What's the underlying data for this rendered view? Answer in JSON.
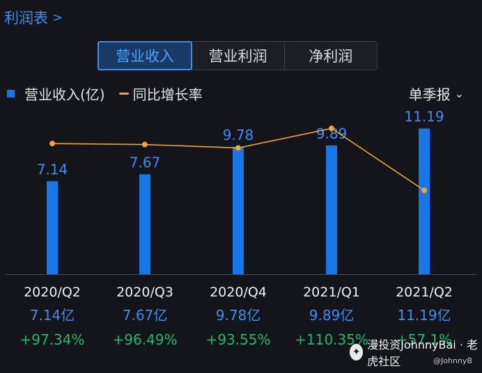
{
  "header": {
    "title": "利润表",
    "chevron": ">"
  },
  "tabs": [
    {
      "label": "营业收入",
      "active": true
    },
    {
      "label": "营业利润",
      "active": false
    },
    {
      "label": "净利润",
      "active": false
    }
  ],
  "legend": {
    "bar_label": "营业收入(亿)",
    "line_label": "同比增长率"
  },
  "period_select": {
    "label": "单季报",
    "chevron": "⌄"
  },
  "colors": {
    "bar": "#1677e8",
    "line": "#f2a33a",
    "accent": "#3e8cf0",
    "growth": "#1fb86a"
  },
  "chart_data": {
    "type": "bar",
    "categories": [
      "2020/Q2",
      "2020/Q3",
      "2020/Q4",
      "2021/Q1",
      "2021/Q2"
    ],
    "series": [
      {
        "name": "营业收入(亿)",
        "type": "bar",
        "values": [
          7.14,
          7.67,
          9.78,
          9.89,
          11.19
        ]
      },
      {
        "name": "同比增长率",
        "type": "line",
        "values": [
          97.34,
          96.49,
          93.55,
          110.35,
          57.1
        ]
      }
    ],
    "value_labels": [
      "7.14",
      "7.67",
      "9.78",
      "9.89",
      "11.19"
    ],
    "ylim": [
      0,
      12.5
    ],
    "line_ylim": [
      -15,
      125
    ]
  },
  "columns": [
    {
      "quarter": "2020/Q2",
      "value": "7.14亿",
      "growth": "+97.34%"
    },
    {
      "quarter": "2020/Q3",
      "value": "7.67亿",
      "growth": "+96.49%"
    },
    {
      "quarter": "2020/Q4",
      "value": "9.78亿",
      "growth": "+93.55%"
    },
    {
      "quarter": "2021/Q1",
      "value": "9.89亿",
      "growth": "+110.35%"
    },
    {
      "quarter": "2021/Q2",
      "value": "11.19亿",
      "growth": "+57.1%"
    }
  ],
  "watermark": {
    "text": "漫投资JohnnyBai · 老虎社区",
    "sub": "@JohnnyB",
    "icon": "wechat-icon"
  }
}
